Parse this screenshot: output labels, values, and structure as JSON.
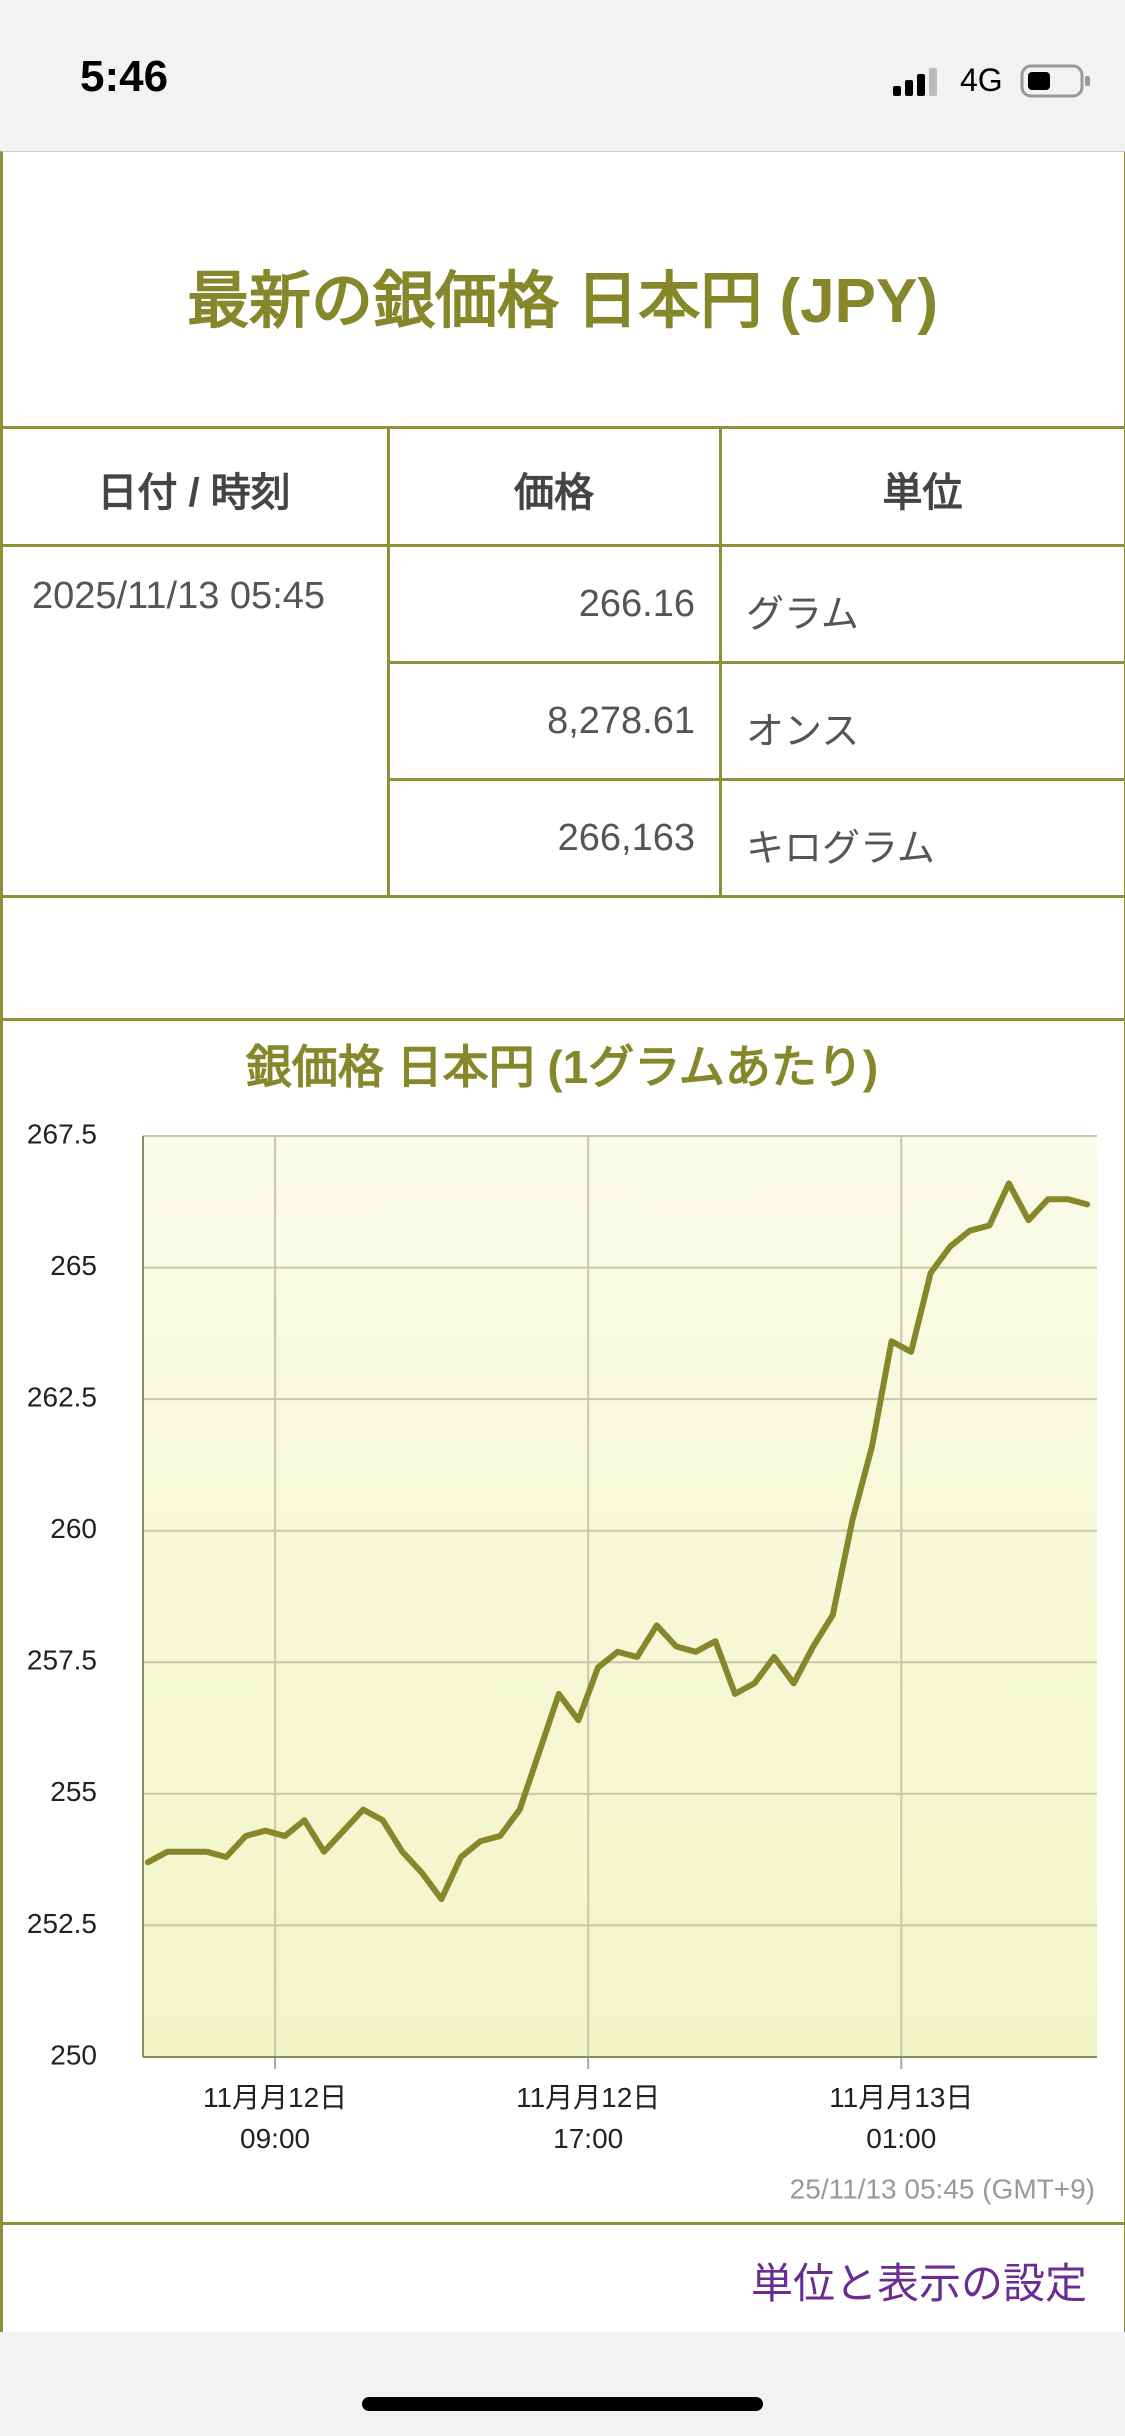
{
  "status_bar": {
    "time": "5:46",
    "network": "4G"
  },
  "header": {
    "title": "最新の銀価格 日本円 (JPY)"
  },
  "table": {
    "columns": [
      "日付 / 時刻",
      "価格",
      "単位"
    ],
    "date": "2025/11/13 05:45",
    "rows": [
      [
        "266.16",
        "グラム"
      ],
      [
        "8,278.61",
        "オンス"
      ],
      [
        "266,163",
        "キログラム"
      ]
    ]
  },
  "chart_data": {
    "type": "line",
    "title": "銀価格 日本円 (1グラムあたり)",
    "values": [
      253.7,
      253.9,
      253.9,
      253.9,
      253.8,
      254.2,
      254.3,
      254.2,
      254.5,
      253.9,
      254.3,
      254.7,
      254.5,
      253.9,
      253.5,
      253.0,
      253.8,
      254.1,
      254.2,
      254.7,
      255.8,
      256.9,
      256.4,
      257.4,
      257.7,
      257.6,
      258.2,
      257.8,
      257.7,
      257.9,
      256.9,
      257.1,
      257.6,
      257.1,
      257.8,
      258.4,
      260.2,
      261.6,
      263.6,
      263.4,
      264.9,
      265.4,
      265.7,
      265.8,
      266.6,
      265.9,
      266.3,
      266.3,
      266.2
    ],
    "color": "#86862a",
    "ylim": [
      250,
      267.5
    ],
    "yticks": [
      250,
      252.5,
      255,
      257.5,
      260,
      262.5,
      265,
      267.5
    ],
    "xlim": [
      -0.25,
      48.5
    ],
    "xticks": [
      {
        "value": 6.5,
        "label": "11月月12日\n09:00"
      },
      {
        "value": 22.5,
        "label": "11月月12日\n17:00"
      },
      {
        "value": 38.5,
        "label": "11月月13日\n01:00"
      }
    ],
    "grid": true,
    "footnote": "25/11/13 05:45 (GMT+9)"
  },
  "footer": {
    "link": "単位と表示の設定"
  }
}
